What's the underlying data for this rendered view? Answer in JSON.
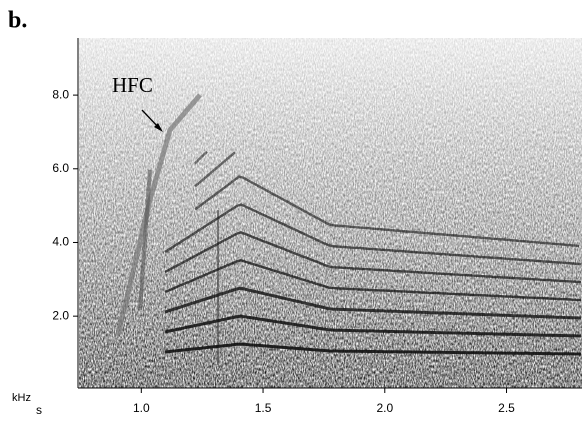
{
  "chart_data": {
    "type": "spectrogram",
    "panel_label": "b.",
    "annotation": "HFC",
    "ylabel": "kHz",
    "xlabel": "s",
    "xlim": [
      0.74,
      2.81
    ],
    "ylim": [
      0.05,
      9.55
    ],
    "xticks": [
      {
        "value": 1,
        "label": "1.0"
      },
      {
        "value": 1.5,
        "label": "1.5"
      },
      {
        "value": 2,
        "label": "2.0"
      },
      {
        "value": 2.5,
        "label": "2.5"
      }
    ],
    "yticks": [
      {
        "value": 2,
        "label": "2.0"
      },
      {
        "value": 4,
        "label": "4.0"
      },
      {
        "value": 6,
        "label": "6.0"
      },
      {
        "value": 8,
        "label": "8.0"
      }
    ]
  }
}
